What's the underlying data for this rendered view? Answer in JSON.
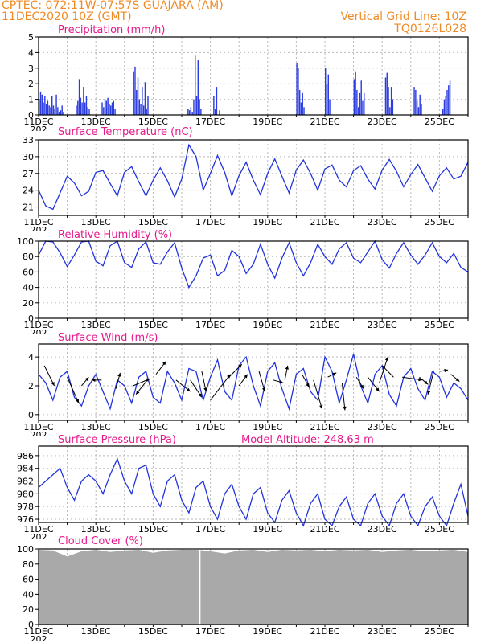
{
  "header": {
    "line1": "CPTEC:   072:11W-07:57S   GUAJARA (AM)",
    "line2": "11DEC2020 10Z (GMT)",
    "grid_note": "Vertical Grid Line: 10Z",
    "code": "TQ0126L028"
  },
  "colors": {
    "header": "#f08a24",
    "title": "#e6198c",
    "line": "#2233dd",
    "bars": "#2b3ce0",
    "cloud": "#a9a9a9",
    "grid": "#bbbbbb"
  },
  "date_labels": [
    "11DEC",
    "13DEC",
    "15DEC",
    "17DEC",
    "19DEC",
    "21DEC",
    "23DEC",
    "25DEC"
  ],
  "year_fragment": "202",
  "chart_data": [
    {
      "type": "bar",
      "title": "Precipitation (mm/h)",
      "x": [
        0,
        0.05,
        0.1,
        0.15,
        0.2,
        0.25,
        0.3,
        0.35,
        0.4,
        0.45,
        0.5,
        0.55,
        0.6,
        0.65,
        0.7,
        0.75,
        0.8,
        0.85,
        1.3,
        1.35,
        1.4,
        1.45,
        1.5,
        1.55,
        1.6,
        1.65,
        1.7,
        1.75,
        2.2,
        2.25,
        2.3,
        2.35,
        2.4,
        2.45,
        2.5,
        2.55,
        2.6,
        2.65,
        3.3,
        3.35,
        3.4,
        3.45,
        3.5,
        3.55,
        3.6,
        3.65,
        3.7,
        3.75,
        3.8,
        5.2,
        5.25,
        5.3,
        5.35,
        5.4,
        5.45,
        5.5,
        5.55,
        5.6,
        5.65,
        6.1,
        6.15,
        6.2,
        6.3,
        9.0,
        9.05,
        9.1,
        9.15,
        9.2,
        9.25,
        10.0,
        10.05,
        10.1,
        10.15,
        11.0,
        11.05,
        11.1,
        11.15,
        11.2,
        11.25,
        11.3,
        11.35,
        12.1,
        12.15,
        12.2,
        12.25,
        12.3,
        12.35,
        13.1,
        13.15,
        13.2,
        13.25,
        13.3,
        13.35,
        14.1,
        14.15,
        14.2,
        14.25,
        14.3,
        14.35
      ],
      "values": [
        1.0,
        1.5,
        1.3,
        0.8,
        1.2,
        0.7,
        0.9,
        0.6,
        0.5,
        1.2,
        0.6,
        0.4,
        1.3,
        0.5,
        0.2,
        0.3,
        0.6,
        0.2,
        0.6,
        0.9,
        2.3,
        1.1,
        0.8,
        1.8,
        0.8,
        1.2,
        0.5,
        0.4,
        0.8,
        0.5,
        1.0,
        0.9,
        1.1,
        0.7,
        0.6,
        0.8,
        0.9,
        0.4,
        2.8,
        3.1,
        1.6,
        2.4,
        1.0,
        0.7,
        1.8,
        0.6,
        2.1,
        0.4,
        1.2,
        0.4,
        0.3,
        0.5,
        0.2,
        1.0,
        3.8,
        1.2,
        3.5,
        1.0,
        0.4,
        1.2,
        0.4,
        1.8,
        0.3,
        3.3,
        3.0,
        1.6,
        0.8,
        1.4,
        0.5,
        3.0,
        2.0,
        2.6,
        1.0,
        2.3,
        2.8,
        1.6,
        0.5,
        1.4,
        2.2,
        0.9,
        1.4,
        2.4,
        2.7,
        1.8,
        0.5,
        1.8,
        1.0,
        1.8,
        1.6,
        0.9,
        0.5,
        1.3,
        0.7,
        0.4,
        1.0,
        1.2,
        1.6,
        1.9,
        2.2
      ],
      "ylim": [
        0,
        5
      ],
      "yticks": [
        "0",
        "1",
        "2",
        "3",
        "4",
        "5"
      ],
      "xlim": [
        0,
        15
      ]
    },
    {
      "type": "line",
      "title": "Surface Temperature (nC)",
      "x": [
        0,
        0.25,
        0.5,
        0.75,
        1.0,
        1.25,
        1.5,
        1.75,
        2.0,
        2.25,
        2.5,
        2.75,
        3.0,
        3.25,
        3.5,
        3.75,
        4.0,
        4.25,
        4.5,
        4.75,
        5.0,
        5.25,
        5.5,
        5.75,
        6.0,
        6.25,
        6.5,
        6.75,
        7.0,
        7.25,
        7.5,
        7.75,
        8.0,
        8.25,
        8.5,
        8.75,
        9.0,
        9.25,
        9.5,
        9.75,
        10.0,
        10.25,
        10.5,
        10.75,
        11.0,
        11.25,
        11.5,
        11.75,
        12.0,
        12.25,
        12.5,
        12.75,
        13.0,
        13.25,
        13.5,
        13.75,
        14.0,
        14.25,
        14.5,
        14.75,
        15.0
      ],
      "values": [
        24,
        21.2,
        20.6,
        23.5,
        26.5,
        25.3,
        23.0,
        23.8,
        27.2,
        27.5,
        25.2,
        23.0,
        27.2,
        28.2,
        25.5,
        23.0,
        25.8,
        28.0,
        25.7,
        22.8,
        26.0,
        32.1,
        30.0,
        24.0,
        27.0,
        30.2,
        27.2,
        23.0,
        26.6,
        29.0,
        25.8,
        23.2,
        27.0,
        29.6,
        26.5,
        23.5,
        27.6,
        29.4,
        27.0,
        24.0,
        27.8,
        28.5,
        25.8,
        24.6,
        27.5,
        28.4,
        26.0,
        24.2,
        27.6,
        29.5,
        27.4,
        24.6,
        26.8,
        28.6,
        26.2,
        23.8,
        26.6,
        28.0,
        26.0,
        26.5,
        29.0
      ],
      "ylim": [
        19.5,
        33
      ],
      "yticks": [
        "21",
        "24",
        "27",
        "30",
        "33"
      ],
      "xlim": [
        0,
        15
      ]
    },
    {
      "type": "line",
      "title": "Relative Humidity (%)",
      "x": [
        0,
        0.25,
        0.5,
        0.75,
        1.0,
        1.25,
        1.5,
        1.75,
        2.0,
        2.25,
        2.5,
        2.75,
        3.0,
        3.25,
        3.5,
        3.75,
        4.0,
        4.25,
        4.5,
        4.75,
        5.0,
        5.25,
        5.5,
        5.75,
        6.0,
        6.25,
        6.5,
        6.75,
        7.0,
        7.25,
        7.5,
        7.75,
        8.0,
        8.25,
        8.5,
        8.75,
        9.0,
        9.25,
        9.5,
        9.75,
        10.0,
        10.25,
        10.5,
        10.75,
        11.0,
        11.25,
        11.5,
        11.75,
        12.0,
        12.25,
        12.5,
        12.75,
        13.0,
        13.25,
        13.5,
        13.75,
        14.0,
        14.25,
        14.5,
        14.75,
        15.0
      ],
      "values": [
        82,
        100,
        99,
        85,
        67,
        82,
        99,
        100,
        74,
        68,
        94,
        100,
        72,
        66,
        90,
        99,
        72,
        70,
        86,
        98,
        65,
        40,
        55,
        78,
        82,
        55,
        62,
        88,
        80,
        58,
        70,
        96,
        70,
        52,
        78,
        98,
        72,
        55,
        72,
        96,
        80,
        70,
        90,
        98,
        78,
        72,
        86,
        100,
        76,
        65,
        84,
        98,
        82,
        70,
        82,
        98,
        80,
        72,
        84,
        66,
        60
      ],
      "ylim": [
        0,
        100
      ],
      "yticks": [
        "0",
        "20",
        "40",
        "60",
        "80",
        "100"
      ],
      "xlim": [
        0,
        15
      ]
    },
    {
      "type": "line",
      "title": "Surface Wind (m/s)",
      "x": [
        0,
        0.25,
        0.5,
        0.75,
        1.0,
        1.25,
        1.5,
        1.75,
        2.0,
        2.25,
        2.5,
        2.75,
        3.0,
        3.25,
        3.5,
        3.75,
        4.0,
        4.25,
        4.5,
        4.75,
        5.0,
        5.25,
        5.5,
        5.75,
        6.0,
        6.25,
        6.5,
        6.75,
        7.0,
        7.25,
        7.5,
        7.75,
        8.0,
        8.25,
        8.5,
        8.75,
        9.0,
        9.25,
        9.5,
        9.75,
        10.0,
        10.25,
        10.5,
        10.75,
        11.0,
        11.25,
        11.5,
        11.75,
        12.0,
        12.25,
        12.5,
        12.75,
        13.0,
        13.25,
        13.5,
        13.75,
        14.0,
        14.25,
        14.5,
        14.75,
        15.0
      ],
      "values": [
        2.8,
        2.2,
        1.0,
        2.6,
        3.0,
        1.2,
        0.6,
        2.0,
        2.8,
        1.6,
        0.4,
        2.4,
        2.0,
        0.8,
        2.6,
        3.0,
        1.2,
        0.8,
        3.0,
        2.2,
        1.0,
        3.2,
        3.0,
        1.0,
        2.6,
        3.8,
        1.6,
        1.0,
        3.4,
        4.0,
        2.0,
        0.6,
        3.0,
        3.6,
        1.8,
        0.4,
        2.8,
        3.2,
        1.6,
        1.0,
        4.0,
        3.0,
        0.8,
        2.4,
        4.2,
        2.0,
        0.8,
        2.8,
        3.4,
        1.4,
        0.6,
        2.6,
        3.2,
        1.8,
        1.0,
        3.0,
        2.6,
        1.2,
        2.2,
        1.8,
        1.0
      ],
      "ylim": [
        -0.4,
        4.9
      ],
      "yticks": [
        "0",
        "2",
        "4"
      ],
      "xlim": [
        0,
        15
      ],
      "wind_vectors": [
        {
          "x": 0.2,
          "y": 3.4,
          "dx": 0.35,
          "dy": -1.4
        },
        {
          "x": 1.0,
          "y": 2.6,
          "dx": 0.4,
          "dy": -1.8
        },
        {
          "x": 1.5,
          "y": 2.0,
          "dx": 0.25,
          "dy": 0.6
        },
        {
          "x": 2.2,
          "y": 2.4,
          "dx": -0.35,
          "dy": 0.0
        },
        {
          "x": 2.7,
          "y": 1.8,
          "dx": 0.15,
          "dy": 1.1
        },
        {
          "x": 3.3,
          "y": 2.0,
          "dx": 0.6,
          "dy": 0.5
        },
        {
          "x": 3.8,
          "y": 2.4,
          "dx": -0.4,
          "dy": -1.0
        },
        {
          "x": 4.1,
          "y": 2.8,
          "dx": 0.35,
          "dy": 0.9
        },
        {
          "x": 4.8,
          "y": 2.4,
          "dx": 0.5,
          "dy": -0.8
        },
        {
          "x": 5.3,
          "y": 2.4,
          "dx": 0.4,
          "dy": -1.2
        },
        {
          "x": 5.7,
          "y": 3.0,
          "dx": 0.15,
          "dy": -1.4
        },
        {
          "x": 6.0,
          "y": 1.0,
          "dx": 0.7,
          "dy": 1.8
        },
        {
          "x": 6.6,
          "y": 2.5,
          "dx": 0.5,
          "dy": 1.0
        },
        {
          "x": 7.0,
          "y": 2.0,
          "dx": 0.3,
          "dy": 0.8
        },
        {
          "x": 7.7,
          "y": 3.0,
          "dx": 0.2,
          "dy": -1.4
        },
        {
          "x": 8.2,
          "y": 2.4,
          "dx": 0.35,
          "dy": -0.2
        },
        {
          "x": 8.6,
          "y": 2.4,
          "dx": 0.1,
          "dy": 1.0
        },
        {
          "x": 9.2,
          "y": 2.8,
          "dx": 0.25,
          "dy": -0.9
        },
        {
          "x": 9.6,
          "y": 2.4,
          "dx": 0.3,
          "dy": -2.0
        },
        {
          "x": 10.1,
          "y": 2.6,
          "dx": 0.3,
          "dy": 0.3
        },
        {
          "x": 10.6,
          "y": 2.2,
          "dx": 0.1,
          "dy": -1.9
        },
        {
          "x": 11.1,
          "y": 2.6,
          "dx": 0.25,
          "dy": -0.8
        },
        {
          "x": 11.5,
          "y": 2.6,
          "dx": 0.4,
          "dy": -1.0
        },
        {
          "x": 11.9,
          "y": 2.2,
          "dx": 0.3,
          "dy": 1.8
        },
        {
          "x": 12.4,
          "y": 2.6,
          "dx": -0.4,
          "dy": 0.8
        },
        {
          "x": 12.7,
          "y": 2.6,
          "dx": 0.7,
          "dy": -0.2
        },
        {
          "x": 13.3,
          "y": 2.6,
          "dx": 0.3,
          "dy": -0.5
        },
        {
          "x": 13.8,
          "y": 3.0,
          "dx": -0.2,
          "dy": -1.6
        },
        {
          "x": 14.0,
          "y": 3.0,
          "dx": 0.3,
          "dy": 0.1
        },
        {
          "x": 14.4,
          "y": 2.8,
          "dx": 0.3,
          "dy": -0.5
        }
      ]
    },
    {
      "type": "line",
      "title": "Surface Pressure (hPa)",
      "subtitle": "Model Altitude: 248.63 m",
      "x": [
        0,
        0.25,
        0.5,
        0.75,
        1.0,
        1.25,
        1.5,
        1.75,
        2.0,
        2.25,
        2.5,
        2.75,
        3.0,
        3.25,
        3.5,
        3.75,
        4.0,
        4.25,
        4.5,
        4.75,
        5.0,
        5.25,
        5.5,
        5.75,
        6.0,
        6.25,
        6.5,
        6.75,
        7.0,
        7.25,
        7.5,
        7.75,
        8.0,
        8.25,
        8.5,
        8.75,
        9.0,
        9.25,
        9.5,
        9.75,
        10.0,
        10.25,
        10.5,
        10.75,
        11.0,
        11.25,
        11.5,
        11.75,
        12.0,
        12.25,
        12.5,
        12.75,
        13.0,
        13.25,
        13.5,
        13.75,
        14.0,
        14.25,
        14.5,
        14.75,
        15.0
      ],
      "values": [
        981,
        982,
        983,
        984,
        981,
        979,
        982,
        983,
        982,
        980,
        983,
        985.5,
        982,
        980,
        984,
        984.5,
        980,
        978,
        982,
        983,
        979,
        977,
        981,
        982,
        978,
        976,
        980,
        981.5,
        978,
        976,
        980,
        981,
        977,
        975.5,
        979,
        980.5,
        977,
        975,
        978.5,
        980,
        976,
        975,
        978,
        979.5,
        976,
        975,
        978.5,
        980,
        976.5,
        975,
        978.5,
        980,
        976.5,
        975,
        978,
        979.5,
        976.5,
        975,
        978.5,
        981.5,
        976.5
      ],
      "ylim": [
        975.5,
        987.5
      ],
      "yticks": [
        "976",
        "978",
        "980",
        "982",
        "984",
        "986"
      ],
      "xlim": [
        0,
        15
      ]
    },
    {
      "type": "area",
      "title": "Cloud Cover (%)",
      "x": [
        0,
        0.5,
        1.0,
        1.5,
        2.0,
        2.5,
        3.0,
        3.5,
        4.0,
        4.5,
        5.0,
        5.5,
        6.0,
        6.5,
        7.0,
        7.5,
        8.0,
        8.5,
        9.0,
        9.5,
        10.0,
        10.5,
        11.0,
        11.5,
        12.0,
        12.5,
        13.0,
        13.5,
        14.0,
        14.5,
        15.0
      ],
      "values": [
        99,
        98,
        90,
        97,
        99,
        96,
        98,
        99,
        95,
        98,
        99,
        99,
        97,
        94,
        98,
        99,
        96,
        99,
        98,
        99,
        97,
        99,
        98,
        99,
        96,
        98,
        99,
        97,
        98,
        99,
        96
      ],
      "gap_x": 5.6,
      "ylim": [
        0,
        100
      ],
      "yticks": [
        "0",
        "20",
        "40",
        "60",
        "80",
        "100"
      ],
      "xlim": [
        0,
        15
      ]
    }
  ]
}
